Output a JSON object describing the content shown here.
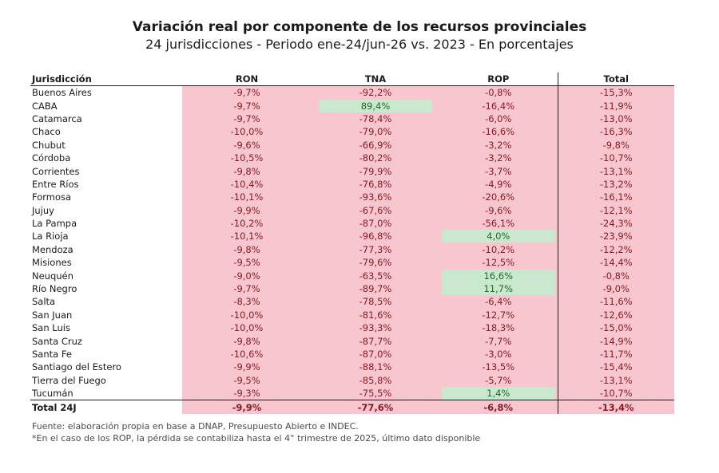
{
  "header": {
    "title": "Variación real por componente de los recursos provinciales",
    "subtitle": "24 jurisdicciones - Periodo ene-24/jun-26 vs. 2023 - En porcentajes"
  },
  "columns": [
    "Jurisdicción",
    "RON",
    "TNA",
    "ROP",
    "Total"
  ],
  "footer": {
    "source": "Fuente: elaboración propia en base a DNAP, Presupuesto Abierto e INDEC.",
    "note": "*En el caso de los ROP, la pérdida se contabiliza hasta el 4° trimestre de 2025, último dato disponible"
  },
  "colors": {
    "negative_bg": "#f7c6cf",
    "negative_text": "#8b1a22",
    "positive_bg": "#c9e8cd",
    "positive_text": "#1f6b2a"
  },
  "chart_data": {
    "type": "table",
    "unit": "%",
    "rows": [
      {
        "name": "Buenos Aires",
        "ron": "-9,7%",
        "tna": "-92,2%",
        "rop": "-0,8%",
        "total": "-15,3%"
      },
      {
        "name": "CABA",
        "ron": "-9,7%",
        "tna": "89,4%",
        "rop": "-16,4%",
        "total": "-11,9%"
      },
      {
        "name": "Catamarca",
        "ron": "-9,7%",
        "tna": "-78,4%",
        "rop": "-6,0%",
        "total": "-13,0%"
      },
      {
        "name": "Chaco",
        "ron": "-10,0%",
        "tna": "-79,0%",
        "rop": "-16,6%",
        "total": "-16,3%"
      },
      {
        "name": "Chubut",
        "ron": "-9,6%",
        "tna": "-66,9%",
        "rop": "-3,2%",
        "total": "-9,8%"
      },
      {
        "name": "Córdoba",
        "ron": "-10,5%",
        "tna": "-80,2%",
        "rop": "-3,2%",
        "total": "-10,7%"
      },
      {
        "name": "Corrientes",
        "ron": "-9,8%",
        "tna": "-79,9%",
        "rop": "-3,7%",
        "total": "-13,1%"
      },
      {
        "name": "Entre Ríos",
        "ron": "-10,4%",
        "tna": "-76,8%",
        "rop": "-4,9%",
        "total": "-13,2%"
      },
      {
        "name": "Formosa",
        "ron": "-10,1%",
        "tna": "-93,6%",
        "rop": "-20,6%",
        "total": "-16,1%"
      },
      {
        "name": "Jujuy",
        "ron": "-9,9%",
        "tna": "-67,6%",
        "rop": "-9,6%",
        "total": "-12,1%"
      },
      {
        "name": "La Pampa",
        "ron": "-10,2%",
        "tna": "-87,0%",
        "rop": "-56,1%",
        "total": "-24,3%"
      },
      {
        "name": "La Rioja",
        "ron": "-10,1%",
        "tna": "-96,8%",
        "rop": "4,0%",
        "total": "-23,9%"
      },
      {
        "name": "Mendoza",
        "ron": "-9,8%",
        "tna": "-77,3%",
        "rop": "-10,2%",
        "total": "-12,2%"
      },
      {
        "name": "Misiones",
        "ron": "-9,5%",
        "tna": "-79,6%",
        "rop": "-12,5%",
        "total": "-14,4%"
      },
      {
        "name": "Neuquén",
        "ron": "-9,0%",
        "tna": "-63,5%",
        "rop": "16,6%",
        "total": "-0,8%"
      },
      {
        "name": "Río Negro",
        "ron": "-9,7%",
        "tna": "-89,7%",
        "rop": "11,7%",
        "total": "-9,0%"
      },
      {
        "name": "Salta",
        "ron": "-8,3%",
        "tna": "-78,5%",
        "rop": "-6,4%",
        "total": "-11,6%"
      },
      {
        "name": "San Juan",
        "ron": "-10,0%",
        "tna": "-81,6%",
        "rop": "-12,7%",
        "total": "-12,6%"
      },
      {
        "name": "San Luis",
        "ron": "-10,0%",
        "tna": "-93,3%",
        "rop": "-18,3%",
        "total": "-15,0%"
      },
      {
        "name": "Santa Cruz",
        "ron": "-9,8%",
        "tna": "-87,7%",
        "rop": "-7,7%",
        "total": "-14,9%"
      },
      {
        "name": "Santa Fe",
        "ron": "-10,6%",
        "tna": "-87,0%",
        "rop": "-3,0%",
        "total": "-11,7%"
      },
      {
        "name": "Santiago del Estero",
        "ron": "-9,9%",
        "tna": "-88,1%",
        "rop": "-13,5%",
        "total": "-15,4%"
      },
      {
        "name": "Tierra del Fuego",
        "ron": "-9,5%",
        "tna": "-85,8%",
        "rop": "-5,7%",
        "total": "-13,1%"
      },
      {
        "name": "Tucumán",
        "ron": "-9,3%",
        "tna": "-75,5%",
        "rop": "1,4%",
        "total": "-10,7%"
      }
    ],
    "total_row": {
      "name": "Total 24J",
      "ron": "-9,9%",
      "tna": "-77,6%",
      "rop": "-6,8%",
      "total": "-13,4%"
    }
  }
}
